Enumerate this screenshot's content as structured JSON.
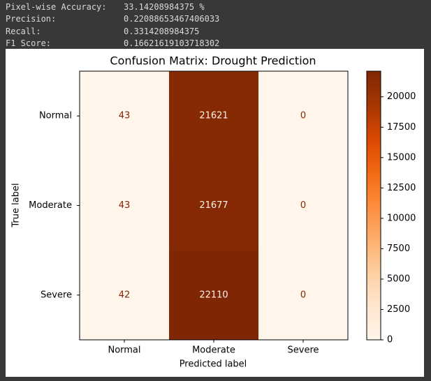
{
  "console": [
    {
      "label": "Pixel-wise Accuracy:",
      "value": "33.14208984375 %"
    },
    {
      "label": "Precision:",
      "value": "0.22088653467406033"
    },
    {
      "label": "Recall:",
      "value": "0.3314208984375"
    },
    {
      "label": "F1 Score:",
      "value": "0.16621619103718302"
    }
  ],
  "chart_data": {
    "type": "heatmap",
    "title": "Confusion Matrix: Drought Prediction",
    "xlabel": "Predicted label",
    "ylabel": "True label",
    "x_categories": [
      "Normal",
      "Moderate",
      "Severe"
    ],
    "y_categories": [
      "Normal",
      "Moderate",
      "Severe"
    ],
    "values": [
      [
        43,
        21621,
        0
      ],
      [
        43,
        21677,
        0
      ],
      [
        42,
        22110,
        0
      ]
    ],
    "colormap": [
      "#fff5eb",
      "#fee6ce",
      "#fdd0a2",
      "#fdae6b",
      "#fd8d3c",
      "#f16913",
      "#d94801",
      "#a63603",
      "#7f2704"
    ],
    "colorbar_lim": [
      0,
      22110
    ],
    "colorbar_ticks": [
      0,
      2500,
      5000,
      7500,
      10000,
      12500,
      15000,
      17500,
      20000
    ]
  }
}
